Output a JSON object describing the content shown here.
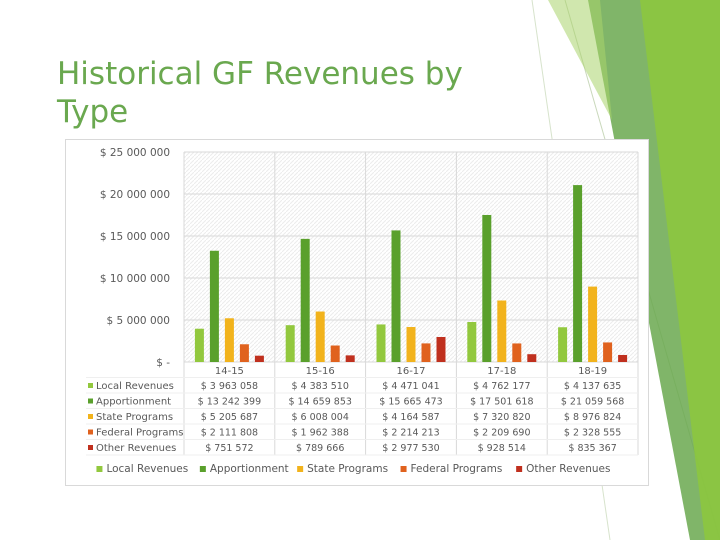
{
  "slide": {
    "title": "Historical GF Revenues by Type"
  },
  "colors": {
    "title": "#6aa84f",
    "accent_stripe_light": "#8cc63f",
    "accent_stripe_dark": "#6aa84f",
    "grid": "#d9d9d9",
    "text": "#595959"
  },
  "chart_data": {
    "type": "bar",
    "title": "",
    "xlabel": "",
    "ylabel": "",
    "ylim": [
      0,
      25000000
    ],
    "yticks": [
      0,
      5000000,
      10000000,
      15000000,
      20000000,
      25000000
    ],
    "ytick_labels": [
      "$ -",
      "$ 5 000 000",
      "$ 10 000 000",
      "$ 15 000 000",
      "$ 20 000 000",
      "$ 25 000 000"
    ],
    "grid": true,
    "legend_position": "bottom",
    "data_table": true,
    "categories": [
      "14-15",
      "15-16",
      "16-17",
      "17-18",
      "18-19"
    ],
    "series": [
      {
        "name": "Local Revenues",
        "color": "#92c83e",
        "values": [
          3963058,
          4383510,
          4471041,
          4762177,
          4137635
        ],
        "labels": [
          "$ 3 963 058",
          "$ 4 383 510",
          "$ 4 471 041",
          "$ 4 762 177",
          "$ 4 137 635"
        ]
      },
      {
        "name": "Apportionment",
        "color": "#5aa02c",
        "values": [
          13242399,
          14659853,
          15665473,
          17501618,
          21059568
        ],
        "labels": [
          "$ 13 242 399",
          "$ 14 659 853",
          "$ 15 665 473",
          "$ 17 501 618",
          "$ 21 059 568"
        ]
      },
      {
        "name": "State Programs",
        "color": "#f2b31c",
        "values": [
          5205687,
          6008004,
          4164587,
          7320820,
          8976824
        ],
        "labels": [
          "$ 5 205 687",
          "$ 6 008 004",
          "$ 4 164 587",
          "$ 7 320 820",
          "$ 8 976 824"
        ]
      },
      {
        "name": "Federal Programs",
        "color": "#e0621e",
        "values": [
          2111808,
          1962388,
          2214213,
          2209690,
          2328555
        ],
        "labels": [
          "$ 2 111 808",
          "$ 1 962 388",
          "$ 2 214 213",
          "$ 2 209 690",
          "$ 2 328 555"
        ]
      },
      {
        "name": "Other Revenues",
        "color": "#c0301e",
        "values": [
          751572,
          789666,
          2977530,
          928514,
          835367
        ],
        "labels": [
          "$ 751 572",
          "$ 789 666",
          "$ 2 977 530",
          "$ 928 514",
          "$ 835 367"
        ]
      }
    ]
  }
}
